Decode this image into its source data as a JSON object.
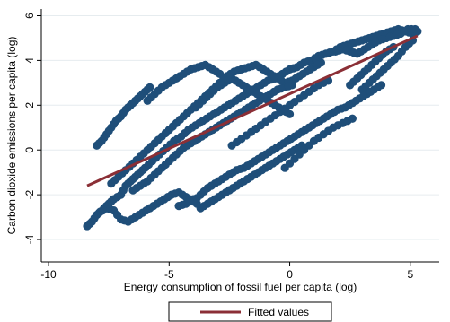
{
  "chart_data": {
    "type": "scatter",
    "xlabel": "Energy consumption of fossil fuel per capita (log)",
    "ylabel": "Carbon dioxide emissions per capita (log)",
    "xlim": [
      -10.3,
      6.2
    ],
    "ylim": [
      -5.0,
      6.3
    ],
    "x_ticks": [
      -10,
      -5,
      0,
      5
    ],
    "x_tick_labels": [
      "-10",
      "-5",
      "0",
      "5"
    ],
    "y_ticks": [
      -4,
      -2,
      0,
      2,
      4,
      6
    ],
    "y_tick_labels": [
      "-4",
      "-2",
      "0",
      "2",
      "4",
      "6"
    ],
    "grid": "horizontal",
    "legend_position": "bottom",
    "colors": {
      "points": "#1f4e79",
      "fit_line": "#8b2f36",
      "grid": "#e6ecef"
    },
    "series": [
      {
        "type": "scatter",
        "description_note": "",
        "points": [
          [
            -8.4,
            -3.4
          ],
          [
            -8.2,
            -3.2
          ],
          [
            -8.0,
            -2.9
          ],
          [
            -7.7,
            -2.6
          ],
          [
            -7.5,
            -2.4
          ],
          [
            -7.3,
            -2.2
          ],
          [
            -7.0,
            -2.0
          ],
          [
            -6.8,
            -1.6
          ],
          [
            -6.6,
            -1.4
          ],
          [
            -6.4,
            -1.2
          ],
          [
            -6.2,
            -1.0
          ],
          [
            -6.0,
            -0.8
          ],
          [
            -5.7,
            -0.5
          ],
          [
            -5.4,
            -0.2
          ],
          [
            -5.1,
            0.1
          ],
          [
            -4.8,
            0.4
          ],
          [
            -4.5,
            0.6
          ],
          [
            -4.2,
            0.9
          ],
          [
            -3.9,
            1.1
          ],
          [
            -3.6,
            1.3
          ],
          [
            -3.3,
            1.5
          ],
          [
            -3.0,
            1.7
          ],
          [
            -2.7,
            1.9
          ],
          [
            -2.4,
            2.1
          ],
          [
            -2.1,
            2.3
          ],
          [
            -1.8,
            2.5
          ],
          [
            -1.5,
            2.7
          ],
          [
            -1.2,
            2.9
          ],
          [
            -0.9,
            3.1
          ],
          [
            -0.6,
            3.2
          ],
          [
            -0.3,
            3.4
          ],
          [
            0.0,
            3.6
          ],
          [
            0.3,
            3.7
          ],
          [
            0.6,
            3.9
          ],
          [
            0.9,
            4.0
          ],
          [
            1.2,
            4.2
          ],
          [
            1.5,
            4.3
          ],
          [
            1.8,
            4.4
          ],
          [
            2.1,
            4.6
          ],
          [
            2.4,
            4.7
          ],
          [
            2.7,
            4.8
          ],
          [
            3.0,
            4.9
          ],
          [
            3.3,
            5.0
          ],
          [
            3.6,
            5.1
          ],
          [
            3.9,
            5.2
          ],
          [
            4.2,
            5.3
          ],
          [
            4.5,
            5.4
          ],
          [
            4.8,
            5.3
          ],
          [
            5.1,
            5.2
          ],
          [
            5.3,
            5.3
          ],
          [
            -8.0,
            0.2
          ],
          [
            -7.8,
            0.4
          ],
          [
            -7.6,
            0.7
          ],
          [
            -7.4,
            1.0
          ],
          [
            -7.2,
            1.3
          ],
          [
            -7.0,
            1.5
          ],
          [
            -6.8,
            1.8
          ],
          [
            -6.6,
            2.0
          ],
          [
            -6.4,
            2.2
          ],
          [
            -6.2,
            2.4
          ],
          [
            -6.0,
            2.6
          ],
          [
            -5.8,
            2.8
          ],
          [
            -7.9,
            -2.8
          ],
          [
            -7.6,
            -2.6
          ],
          [
            -7.3,
            -2.7
          ],
          [
            -7.0,
            -3.1
          ],
          [
            -6.7,
            -3.2
          ],
          [
            -6.4,
            -3.0
          ],
          [
            -6.1,
            -2.8
          ],
          [
            -5.8,
            -2.6
          ],
          [
            -5.5,
            -2.4
          ],
          [
            -5.2,
            -2.2
          ],
          [
            -4.9,
            -2.0
          ],
          [
            -4.6,
            -1.9
          ],
          [
            -4.3,
            -2.1
          ],
          [
            -4.0,
            -2.3
          ],
          [
            -3.7,
            -2.0
          ],
          [
            -3.4,
            -1.7
          ],
          [
            -3.1,
            -1.5
          ],
          [
            -2.8,
            -1.3
          ],
          [
            -2.5,
            -1.1
          ],
          [
            -2.2,
            -0.9
          ],
          [
            -1.9,
            -0.8
          ],
          [
            -1.6,
            -0.6
          ],
          [
            -1.3,
            -0.4
          ],
          [
            -1.0,
            -0.2
          ],
          [
            -0.7,
            0.0
          ],
          [
            -0.4,
            0.2
          ],
          [
            -0.1,
            0.4
          ],
          [
            0.2,
            0.6
          ],
          [
            0.5,
            0.8
          ],
          [
            0.8,
            1.0
          ],
          [
            1.1,
            1.2
          ],
          [
            1.4,
            1.4
          ],
          [
            1.7,
            1.6
          ],
          [
            2.0,
            1.8
          ],
          [
            2.3,
            1.9
          ],
          [
            2.6,
            2.1
          ],
          [
            2.9,
            2.3
          ],
          [
            3.2,
            2.5
          ],
          [
            3.5,
            2.7
          ],
          [
            3.8,
            2.9
          ],
          [
            -7.4,
            -1.5
          ],
          [
            -7.1,
            -1.2
          ],
          [
            -6.8,
            -0.9
          ],
          [
            -6.5,
            -0.6
          ],
          [
            -6.2,
            -0.3
          ],
          [
            -5.9,
            0.0
          ],
          [
            -5.6,
            0.3
          ],
          [
            -5.3,
            0.6
          ],
          [
            -5.0,
            0.9
          ],
          [
            -4.7,
            1.2
          ],
          [
            -4.4,
            1.5
          ],
          [
            -4.1,
            1.8
          ],
          [
            -3.8,
            2.1
          ],
          [
            -3.5,
            2.4
          ],
          [
            -3.2,
            2.7
          ],
          [
            -2.9,
            3.0
          ],
          [
            -2.6,
            3.3
          ],
          [
            -2.3,
            3.5
          ],
          [
            -2.0,
            3.6
          ],
          [
            -1.7,
            3.7
          ],
          [
            -1.4,
            3.8
          ],
          [
            -1.1,
            3.6
          ],
          [
            -0.8,
            3.4
          ],
          [
            -0.5,
            3.2
          ],
          [
            -0.2,
            3.0
          ],
          [
            0.1,
            3.1
          ],
          [
            0.4,
            3.3
          ],
          [
            0.7,
            3.5
          ],
          [
            1.0,
            3.7
          ],
          [
            1.3,
            3.9
          ],
          [
            -6.5,
            -1.8
          ],
          [
            -6.2,
            -1.6
          ],
          [
            -5.9,
            -1.4
          ],
          [
            -5.6,
            -1.1
          ],
          [
            -5.3,
            -0.8
          ],
          [
            -5.0,
            -0.5
          ],
          [
            -4.7,
            -0.2
          ],
          [
            -4.4,
            0.1
          ],
          [
            -4.1,
            0.3
          ],
          [
            -3.8,
            0.5
          ],
          [
            -3.5,
            0.7
          ],
          [
            -3.2,
            0.9
          ],
          [
            -2.9,
            1.1
          ],
          [
            -2.6,
            1.3
          ],
          [
            -2.3,
            1.5
          ],
          [
            -2.0,
            1.7
          ],
          [
            -1.7,
            1.9
          ],
          [
            -1.4,
            2.1
          ],
          [
            -1.1,
            2.3
          ],
          [
            -0.8,
            2.5
          ],
          [
            -0.5,
            2.7
          ],
          [
            -0.2,
            2.8
          ],
          [
            0.1,
            2.9
          ],
          [
            -5.9,
            2.2
          ],
          [
            -5.6,
            2.5
          ],
          [
            -5.3,
            2.8
          ],
          [
            -5.0,
            3.0
          ],
          [
            -4.7,
            3.2
          ],
          [
            -4.4,
            3.4
          ],
          [
            -4.1,
            3.6
          ],
          [
            -3.8,
            3.7
          ],
          [
            -3.5,
            3.8
          ],
          [
            -3.2,
            3.6
          ],
          [
            -2.9,
            3.4
          ],
          [
            -4.6,
            -2.5
          ],
          [
            -4.3,
            -2.4
          ],
          [
            -4.0,
            -2.2
          ],
          [
            -3.7,
            -2.6
          ],
          [
            -3.4,
            -2.4
          ],
          [
            -3.1,
            -2.2
          ],
          [
            -2.8,
            -2.0
          ],
          [
            -2.5,
            -1.8
          ],
          [
            -2.2,
            -1.6
          ],
          [
            -1.9,
            -1.4
          ],
          [
            -1.6,
            -1.2
          ],
          [
            -1.3,
            -1.0
          ],
          [
            -1.0,
            -0.8
          ],
          [
            -0.7,
            -0.6
          ],
          [
            -0.4,
            -0.4
          ],
          [
            -0.1,
            -0.2
          ],
          [
            0.2,
            0.0
          ],
          [
            0.5,
            0.2
          ],
          [
            -3.9,
            1.9
          ],
          [
            -3.6,
            2.2
          ],
          [
            -3.3,
            2.5
          ],
          [
            -3.0,
            2.8
          ],
          [
            -2.7,
            3.0
          ],
          [
            -2.4,
            3.2
          ],
          [
            -2.1,
            3.0
          ],
          [
            -1.8,
            2.8
          ],
          [
            -1.5,
            2.6
          ],
          [
            -1.2,
            2.4
          ],
          [
            -0.9,
            2.2
          ],
          [
            -0.6,
            2.0
          ],
          [
            -0.3,
            1.8
          ],
          [
            0.0,
            1.6
          ],
          [
            -2.4,
            0.2
          ],
          [
            -2.0,
            0.5
          ],
          [
            -1.6,
            0.8
          ],
          [
            -1.2,
            1.1
          ],
          [
            -0.8,
            1.4
          ],
          [
            -0.4,
            1.7
          ],
          [
            0.0,
            2.0
          ],
          [
            0.4,
            2.3
          ],
          [
            0.8,
            2.6
          ],
          [
            1.2,
            2.9
          ],
          [
            1.6,
            3.1
          ],
          [
            -0.2,
            -0.8
          ],
          [
            0.2,
            -0.4
          ],
          [
            0.6,
            0.0
          ],
          [
            1.0,
            0.4
          ],
          [
            1.4,
            0.7
          ],
          [
            1.8,
            1.0
          ],
          [
            2.2,
            1.2
          ],
          [
            2.6,
            1.4
          ],
          [
            1.9,
            4.4
          ],
          [
            2.2,
            4.5
          ],
          [
            2.5,
            4.4
          ],
          [
            2.8,
            4.3
          ],
          [
            3.1,
            4.5
          ],
          [
            3.4,
            4.7
          ],
          [
            3.7,
            4.9
          ],
          [
            4.0,
            5.0
          ],
          [
            4.3,
            5.1
          ],
          [
            4.6,
            5.2
          ],
          [
            4.9,
            5.4
          ],
          [
            5.2,
            5.4
          ],
          [
            3.0,
            2.7
          ],
          [
            3.3,
            3.0
          ],
          [
            3.6,
            3.3
          ],
          [
            3.9,
            3.6
          ],
          [
            4.2,
            3.9
          ],
          [
            4.5,
            4.2
          ],
          [
            4.8,
            4.6
          ],
          [
            5.1,
            4.9
          ],
          [
            2.5,
            2.9
          ],
          [
            2.8,
            3.2
          ],
          [
            3.1,
            3.5
          ],
          [
            3.4,
            3.8
          ],
          [
            3.7,
            4.1
          ],
          [
            4.0,
            4.4
          ],
          [
            4.3,
            4.6
          ]
        ]
      },
      {
        "type": "line",
        "name": "Fitted values",
        "x": [
          -8.4,
          5.3
        ],
        "y": [
          -1.6,
          5.1
        ]
      }
    ],
    "legend": [
      "Fitted values"
    ]
  }
}
